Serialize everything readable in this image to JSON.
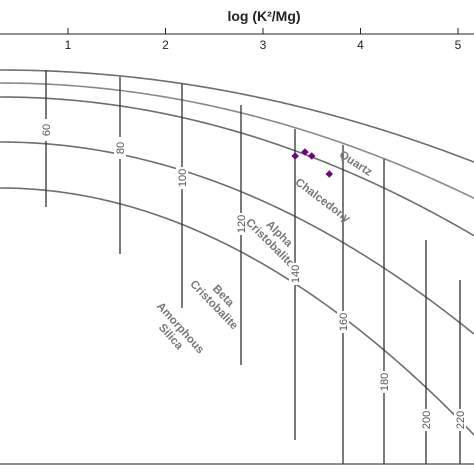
{
  "chart_data": {
    "type": "scatter",
    "title": "log (K²/Mg)",
    "xlabel": "",
    "ylabel": "",
    "x_ticks": [
      "1",
      "2",
      "3",
      "4",
      "5"
    ],
    "silica_curves": [
      {
        "label": "Quartz"
      },
      {
        "label": "Chalcedony"
      },
      {
        "label": "Alpha Cristobalite"
      },
      {
        "label": "Beta Cristobalite"
      },
      {
        "label": "Amorphous Silica"
      }
    ],
    "isotherm_labels": [
      "60",
      "80",
      "100",
      "120",
      "140",
      "160",
      "180",
      "200",
      "220"
    ],
    "marker_color": "#6a0a7a",
    "points": [
      {
        "x": 3.33,
        "y": 0.0
      },
      {
        "x": 3.43,
        "y": 0.1
      },
      {
        "x": 3.5,
        "y": 0.0
      },
      {
        "x": 3.68,
        "y": -0.45
      }
    ]
  }
}
